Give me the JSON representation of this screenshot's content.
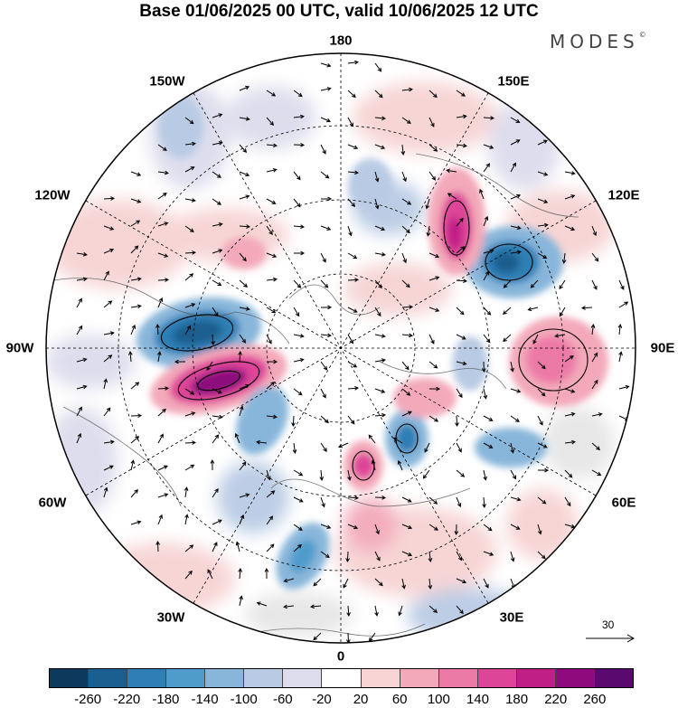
{
  "title": "Base 01/06/2025 00 UTC, valid 10/06/2025 12 UTC",
  "brand": "MODES",
  "brand_mark": "©",
  "longitude_labels": {
    "n180": "180",
    "w150": "150W",
    "e150": "150E",
    "w120": "120W",
    "e120": "120E",
    "w90": "90W",
    "e90": "90E",
    "w60": "60W",
    "e60": "60E",
    "w30": "30W",
    "e30": "30E",
    "s0": "0"
  },
  "vector_scale": {
    "label": "30",
    "icon": "reference-arrow-icon"
  },
  "colorbar": {
    "colors": [
      "#0d3a5c",
      "#1a5f8f",
      "#2f7fb5",
      "#4f9ccb",
      "#88b6da",
      "#b9cbe4",
      "#dcdcec",
      "#ffffff",
      "#f7d3d3",
      "#f3a9b9",
      "#ec7aa7",
      "#dd4598",
      "#c01f86",
      "#8e0a7d",
      "#5a0a6e"
    ],
    "ticks": [
      "-260",
      "-220",
      "-180",
      "-140",
      "-100",
      "-60",
      "-20",
      "20",
      "60",
      "100",
      "140",
      "180",
      "220",
      "260"
    ]
  },
  "map_colors": {
    "neg_strong": "#1a5f8f",
    "neg_mid": "#4f9ccb",
    "neg_light": "#b9cbe4",
    "pos_light": "#f7d3d3",
    "pos_mid": "#ec7aa7",
    "pos_strong": "#c01f86",
    "land_grey": "#e6e6e6"
  }
}
